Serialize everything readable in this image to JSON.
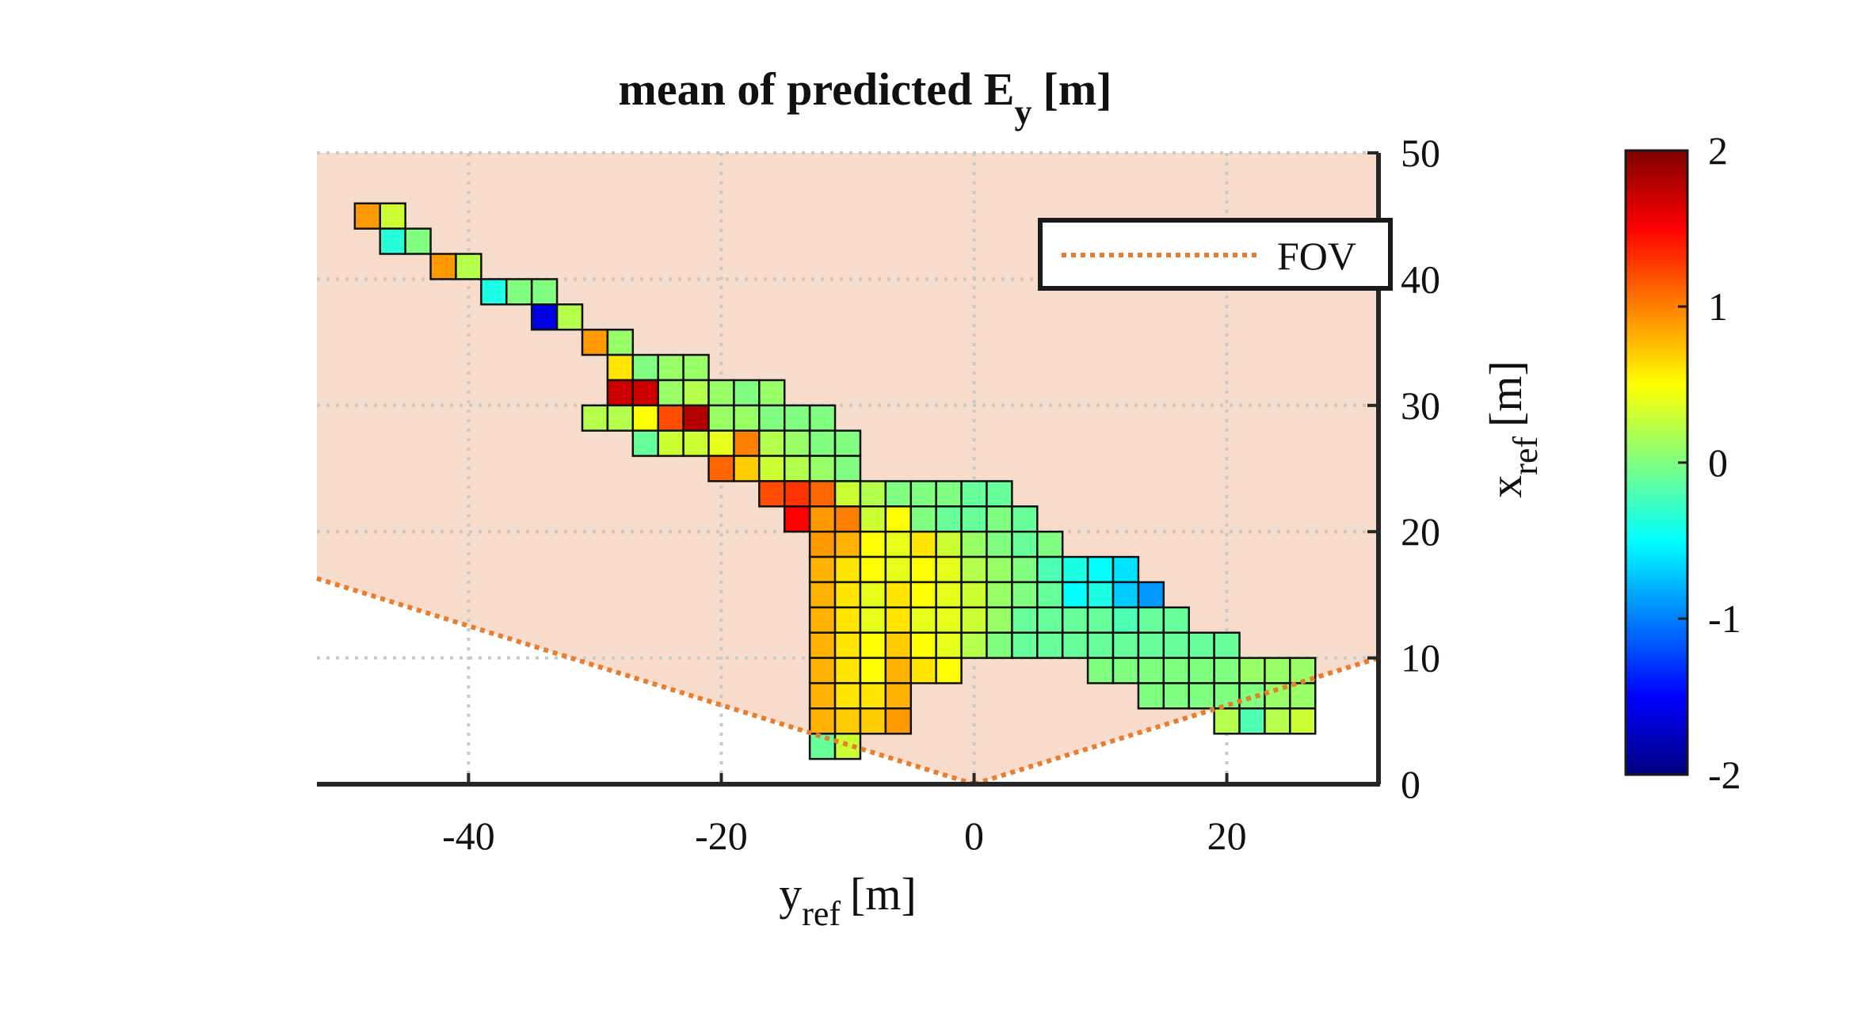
{
  "chart_data": {
    "type": "heatmap",
    "title": "mean of predicted E",
    "title_subscript": "y",
    "title_unit": "[m]",
    "xlabel": "y",
    "xlabel_subscript": "ref",
    "xlabel_unit": "[m]",
    "ylabel": "x",
    "ylabel_subscript": "ref",
    "ylabel_unit": "[m]",
    "xlim": [
      -52,
      32
    ],
    "ylim": [
      0,
      50
    ],
    "xticks": [
      -40,
      -20,
      0,
      20
    ],
    "yticks": [
      0,
      10,
      20,
      30,
      40,
      50
    ],
    "xtick_labels": [
      "-40",
      "-20",
      "0",
      "20"
    ],
    "ytick_labels": [
      "0",
      "10",
      "20",
      "30",
      "40",
      "50"
    ],
    "y_axis_location": "right",
    "grid": true,
    "cell_size_m": 2,
    "colormap": "jet",
    "clim": [
      -2,
      2
    ],
    "colorbar_ticks": [
      "2",
      "1",
      "0",
      "-1",
      "-2"
    ],
    "colorbar_tick_values": [
      2,
      1,
      0,
      -1,
      -2
    ],
    "legend": {
      "label": "FOV",
      "location": "top-right",
      "color": "#E87D2E",
      "style": "dotted"
    },
    "fov": {
      "apex": [
        0,
        0
      ],
      "left_edge_end": [
        -52,
        16.3
      ],
      "right_edge_end": [
        32,
        10
      ],
      "shading_color": "#F8DCCB"
    },
    "cells": [
      {
        "y": -48,
        "x": 45,
        "v": 0.9
      },
      {
        "y": -46,
        "x": 45,
        "v": 0.3
      },
      {
        "y": -46,
        "x": 43,
        "v": -0.35
      },
      {
        "y": -44,
        "x": 43,
        "v": 0.0
      },
      {
        "y": -42,
        "x": 41,
        "v": 0.9
      },
      {
        "y": -40,
        "x": 41,
        "v": 0.2
      },
      {
        "y": -38,
        "x": 39,
        "v": -0.4
      },
      {
        "y": -36,
        "x": 39,
        "v": 0.0
      },
      {
        "y": -34,
        "x": 39,
        "v": 0.0
      },
      {
        "y": -34,
        "x": 37,
        "v": -1.6
      },
      {
        "y": -32,
        "x": 37,
        "v": 0.2
      },
      {
        "y": -30,
        "x": 35,
        "v": 0.9
      },
      {
        "y": -28,
        "x": 35,
        "v": 0.1
      },
      {
        "y": -28,
        "x": 33,
        "v": 0.6
      },
      {
        "y": -26,
        "x": 33,
        "v": 0.0
      },
      {
        "y": -24,
        "x": 33,
        "v": 0.1
      },
      {
        "y": -22,
        "x": 33,
        "v": 0.1
      },
      {
        "y": -28,
        "x": 31,
        "v": 1.7
      },
      {
        "y": -26,
        "x": 31,
        "v": 1.7
      },
      {
        "y": -24,
        "x": 31,
        "v": 0.1
      },
      {
        "y": -22,
        "x": 31,
        "v": 0.2
      },
      {
        "y": -20,
        "x": 31,
        "v": 0.1
      },
      {
        "y": -18,
        "x": 31,
        "v": 0.0
      },
      {
        "y": -16,
        "x": 31,
        "v": 0.1
      },
      {
        "y": -30,
        "x": 29,
        "v": 0.2
      },
      {
        "y": -28,
        "x": 29,
        "v": 0.2
      },
      {
        "y": -26,
        "x": 29,
        "v": 0.5
      },
      {
        "y": -24,
        "x": 29,
        "v": 1.2
      },
      {
        "y": -22,
        "x": 29,
        "v": 1.8
      },
      {
        "y": -20,
        "x": 29,
        "v": 0.1
      },
      {
        "y": -18,
        "x": 29,
        "v": 0.1
      },
      {
        "y": -16,
        "x": 29,
        "v": 0.0
      },
      {
        "y": -14,
        "x": 29,
        "v": 0.0
      },
      {
        "y": -12,
        "x": 29,
        "v": 0.0
      },
      {
        "y": -26,
        "x": 27,
        "v": -0.1
      },
      {
        "y": -24,
        "x": 27,
        "v": 0.3
      },
      {
        "y": -22,
        "x": 27,
        "v": 0.3
      },
      {
        "y": -20,
        "x": 27,
        "v": 0.4
      },
      {
        "y": -18,
        "x": 27,
        "v": 1.0
      },
      {
        "y": -16,
        "x": 27,
        "v": 0.2
      },
      {
        "y": -14,
        "x": 27,
        "v": 0.1
      },
      {
        "y": -12,
        "x": 27,
        "v": 0.0
      },
      {
        "y": -10,
        "x": 27,
        "v": 0.0
      },
      {
        "y": -20,
        "x": 25,
        "v": 1.1
      },
      {
        "y": -18,
        "x": 25,
        "v": 0.7
      },
      {
        "y": -16,
        "x": 25,
        "v": 0.3
      },
      {
        "y": -14,
        "x": 25,
        "v": 0.2
      },
      {
        "y": -12,
        "x": 25,
        "v": 0.1
      },
      {
        "y": -10,
        "x": 25,
        "v": 0.0
      },
      {
        "y": -16,
        "x": 23,
        "v": 1.2
      },
      {
        "y": -14,
        "x": 23,
        "v": 1.3
      },
      {
        "y": -12,
        "x": 23,
        "v": 1.1
      },
      {
        "y": -10,
        "x": 23,
        "v": 0.3
      },
      {
        "y": -8,
        "x": 23,
        "v": 0.2
      },
      {
        "y": -6,
        "x": 23,
        "v": 0.0
      },
      {
        "y": -4,
        "x": 23,
        "v": 0.0
      },
      {
        "y": -2,
        "x": 23,
        "v": 0.0
      },
      {
        "y": 0,
        "x": 23,
        "v": -0.1
      },
      {
        "y": 2,
        "x": 23,
        "v": -0.1
      },
      {
        "y": -14,
        "x": 21,
        "v": 1.5
      },
      {
        "y": -12,
        "x": 21,
        "v": 0.9
      },
      {
        "y": -10,
        "x": 21,
        "v": 1.0
      },
      {
        "y": -8,
        "x": 21,
        "v": 0.3
      },
      {
        "y": -6,
        "x": 21,
        "v": 0.5
      },
      {
        "y": -4,
        "x": 21,
        "v": 0.0
      },
      {
        "y": -2,
        "x": 21,
        "v": -0.1
      },
      {
        "y": 0,
        "x": 21,
        "v": -0.1
      },
      {
        "y": 2,
        "x": 21,
        "v": 0.0
      },
      {
        "y": 4,
        "x": 21,
        "v": -0.1
      },
      {
        "y": -12,
        "x": 19,
        "v": 0.9
      },
      {
        "y": -10,
        "x": 19,
        "v": 0.8
      },
      {
        "y": -8,
        "x": 19,
        "v": 0.5
      },
      {
        "y": -6,
        "x": 19,
        "v": 0.4
      },
      {
        "y": -4,
        "x": 19,
        "v": 0.6
      },
      {
        "y": -2,
        "x": 19,
        "v": 0.3
      },
      {
        "y": 0,
        "x": 19,
        "v": 0.1
      },
      {
        "y": 2,
        "x": 19,
        "v": 0.0
      },
      {
        "y": 4,
        "x": 19,
        "v": -0.1
      },
      {
        "y": 6,
        "x": 19,
        "v": 0.0
      },
      {
        "y": -12,
        "x": 17,
        "v": 0.8
      },
      {
        "y": -10,
        "x": 17,
        "v": 0.6
      },
      {
        "y": -8,
        "x": 17,
        "v": 0.5
      },
      {
        "y": -6,
        "x": 17,
        "v": 0.4
      },
      {
        "y": -4,
        "x": 17,
        "v": 0.5
      },
      {
        "y": -2,
        "x": 17,
        "v": 0.4
      },
      {
        "y": 0,
        "x": 17,
        "v": 0.2
      },
      {
        "y": 2,
        "x": 17,
        "v": 0.1
      },
      {
        "y": 4,
        "x": 17,
        "v": 0.0
      },
      {
        "y": 6,
        "x": 17,
        "v": -0.2
      },
      {
        "y": 8,
        "x": 17,
        "v": -0.4
      },
      {
        "y": 10,
        "x": 17,
        "v": -0.5
      },
      {
        "y": 12,
        "x": 17,
        "v": -0.6
      },
      {
        "y": -12,
        "x": 15,
        "v": 0.8
      },
      {
        "y": -10,
        "x": 15,
        "v": 0.6
      },
      {
        "y": -8,
        "x": 15,
        "v": 0.4
      },
      {
        "y": -6,
        "x": 15,
        "v": 0.6
      },
      {
        "y": -4,
        "x": 15,
        "v": 0.5
      },
      {
        "y": -2,
        "x": 15,
        "v": 0.4
      },
      {
        "y": 0,
        "x": 15,
        "v": 0.3
      },
      {
        "y": 2,
        "x": 15,
        "v": 0.1
      },
      {
        "y": 4,
        "x": 15,
        "v": 0.0
      },
      {
        "y": 6,
        "x": 15,
        "v": -0.1
      },
      {
        "y": 8,
        "x": 15,
        "v": -0.5
      },
      {
        "y": 10,
        "x": 15,
        "v": -0.4
      },
      {
        "y": 12,
        "x": 15,
        "v": -0.7
      },
      {
        "y": 14,
        "x": 15,
        "v": -0.9
      },
      {
        "y": -12,
        "x": 13,
        "v": 0.8
      },
      {
        "y": -10,
        "x": 13,
        "v": 0.6
      },
      {
        "y": -8,
        "x": 13,
        "v": 0.4
      },
      {
        "y": -6,
        "x": 13,
        "v": 0.6
      },
      {
        "y": -4,
        "x": 13,
        "v": 0.4
      },
      {
        "y": -2,
        "x": 13,
        "v": 0.4
      },
      {
        "y": 0,
        "x": 13,
        "v": 0.3
      },
      {
        "y": 2,
        "x": 13,
        "v": 0.1
      },
      {
        "y": 4,
        "x": 13,
        "v": -0.1
      },
      {
        "y": 6,
        "x": 13,
        "v": -0.1
      },
      {
        "y": 8,
        "x": 13,
        "v": -0.1
      },
      {
        "y": 10,
        "x": 13,
        "v": -0.1
      },
      {
        "y": 12,
        "x": 13,
        "v": -0.2
      },
      {
        "y": 14,
        "x": 13,
        "v": -0.1
      },
      {
        "y": 16,
        "x": 13,
        "v": -0.1
      },
      {
        "y": -12,
        "x": 11,
        "v": 0.8
      },
      {
        "y": -10,
        "x": 11,
        "v": 0.6
      },
      {
        "y": -8,
        "x": 11,
        "v": 0.5
      },
      {
        "y": -6,
        "x": 11,
        "v": 0.7
      },
      {
        "y": -4,
        "x": 11,
        "v": 0.5
      },
      {
        "y": -2,
        "x": 11,
        "v": 0.4
      },
      {
        "y": 0,
        "x": 11,
        "v": 0.2
      },
      {
        "y": 2,
        "x": 11,
        "v": 0.0
      },
      {
        "y": 4,
        "x": 11,
        "v": -0.1
      },
      {
        "y": 6,
        "x": 11,
        "v": -0.1
      },
      {
        "y": 8,
        "x": 11,
        "v": -0.1
      },
      {
        "y": 10,
        "x": 11,
        "v": -0.1
      },
      {
        "y": 12,
        "x": 11,
        "v": -0.1
      },
      {
        "y": 14,
        "x": 11,
        "v": -0.1
      },
      {
        "y": 16,
        "x": 11,
        "v": -0.1
      },
      {
        "y": 18,
        "x": 11,
        "v": -0.1
      },
      {
        "y": 20,
        "x": 11,
        "v": -0.1
      },
      {
        "y": -12,
        "x": 9,
        "v": 0.8
      },
      {
        "y": -10,
        "x": 9,
        "v": 0.6
      },
      {
        "y": -8,
        "x": 9,
        "v": 0.5
      },
      {
        "y": -6,
        "x": 9,
        "v": 0.8
      },
      {
        "y": -4,
        "x": 9,
        "v": 0.6
      },
      {
        "y": -2,
        "x": 9,
        "v": 0.5
      },
      {
        "y": 10,
        "x": 9,
        "v": 0.0
      },
      {
        "y": 12,
        "x": 9,
        "v": 0.0
      },
      {
        "y": 14,
        "x": 9,
        "v": 0.0
      },
      {
        "y": 16,
        "x": 9,
        "v": 0.0
      },
      {
        "y": 18,
        "x": 9,
        "v": 0.0
      },
      {
        "y": 20,
        "x": 9,
        "v": 0.0
      },
      {
        "y": 22,
        "x": 9,
        "v": 0.1
      },
      {
        "y": 24,
        "x": 9,
        "v": 0.1
      },
      {
        "y": 26,
        "x": 9,
        "v": 0.1
      },
      {
        "y": -12,
        "x": 7,
        "v": 0.8
      },
      {
        "y": -10,
        "x": 7,
        "v": 0.6
      },
      {
        "y": -8,
        "x": 7,
        "v": 0.6
      },
      {
        "y": -6,
        "x": 7,
        "v": 0.8
      },
      {
        "y": 14,
        "x": 7,
        "v": 0.0
      },
      {
        "y": 16,
        "x": 7,
        "v": 0.0
      },
      {
        "y": 18,
        "x": 7,
        "v": 0.0
      },
      {
        "y": 20,
        "x": 7,
        "v": 0.0
      },
      {
        "y": 22,
        "x": 7,
        "v": 0.0
      },
      {
        "y": 24,
        "x": 7,
        "v": 0.1
      },
      {
        "y": 26,
        "x": 7,
        "v": 0.1
      },
      {
        "y": -12,
        "x": 5,
        "v": 0.8
      },
      {
        "y": -10,
        "x": 5,
        "v": 0.7
      },
      {
        "y": -8,
        "x": 5,
        "v": 0.7
      },
      {
        "y": -6,
        "x": 5,
        "v": 0.9
      },
      {
        "y": 20,
        "x": 5,
        "v": 0.2
      },
      {
        "y": 22,
        "x": 5,
        "v": -0.2
      },
      {
        "y": 24,
        "x": 5,
        "v": 0.2
      },
      {
        "y": 26,
        "x": 5,
        "v": 0.3
      },
      {
        "y": -12,
        "x": 3,
        "v": -0.1
      },
      {
        "y": -10,
        "x": 3,
        "v": 0.3
      }
    ]
  }
}
